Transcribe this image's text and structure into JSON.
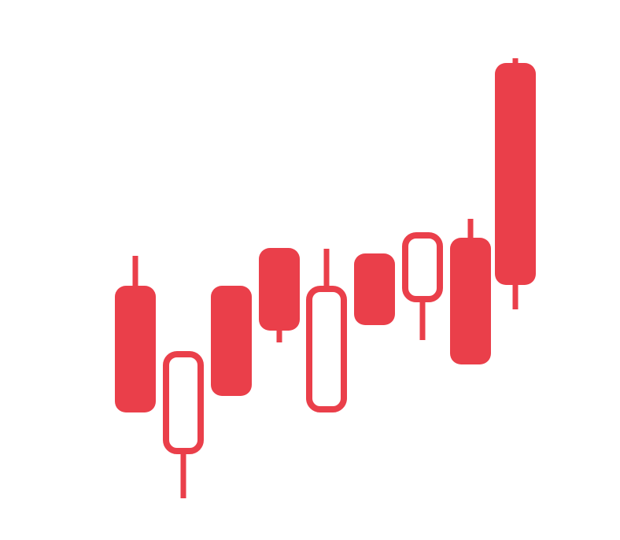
{
  "icon": {
    "name": "candlestick-chart-icon",
    "color": "#ea3f4a",
    "background": "#ffffff",
    "candles": [
      {
        "style": "filled"
      },
      {
        "style": "hollow"
      },
      {
        "style": "filled"
      },
      {
        "style": "filled"
      },
      {
        "style": "hollow"
      },
      {
        "style": "filled"
      },
      {
        "style": "hollow"
      },
      {
        "style": "filled"
      },
      {
        "style": "filled"
      }
    ]
  }
}
